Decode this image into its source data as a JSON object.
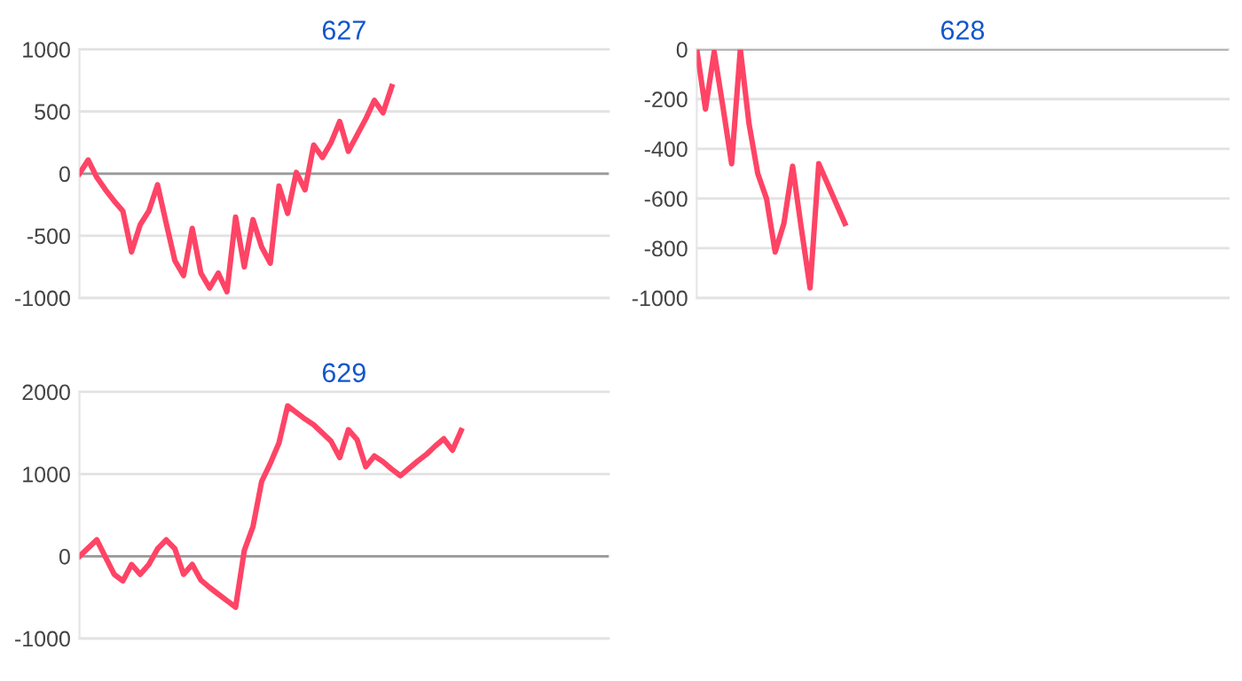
{
  "chart_data": [
    {
      "type": "line",
      "title": "627",
      "tick_labels": "y",
      "grid": "y",
      "categories": [
        null,
        null,
        null,
        null,
        null,
        null,
        null,
        null,
        null,
        null,
        null,
        null,
        null,
        null,
        null,
        null,
        null,
        null,
        null,
        null,
        null,
        null,
        null,
        null,
        null,
        null,
        null,
        null,
        null,
        null,
        null,
        null,
        null,
        null,
        null,
        null,
        null,
        null,
        null,
        null,
        null,
        null,
        null,
        null,
        null,
        null,
        null,
        null,
        null,
        null,
        null,
        null,
        null,
        null,
        null,
        null,
        null,
        null,
        null,
        null,
        null,
        null
      ],
      "series": [
        {
          "color": "#ff4466",
          "values": [
            0,
            110,
            -30,
            -130,
            -220,
            -300,
            -630,
            -410,
            -300,
            -90,
            -400,
            -700,
            -820,
            -440,
            -800,
            -920,
            -800,
            -950,
            -350,
            -750,
            -370,
            -590,
            -720,
            -100,
            -320,
            10,
            -130,
            230,
            130,
            250,
            420,
            180,
            310,
            440,
            590,
            490,
            700,
            null,
            null,
            null,
            null,
            null,
            null,
            null,
            null,
            null,
            null,
            null,
            null,
            null,
            null,
            null,
            null,
            null,
            null,
            null,
            null,
            null,
            null,
            null,
            null,
            null
          ]
        }
      ],
      "ylim": [
        -1000,
        1000
      ],
      "yticks": [
        -1000,
        -500,
        0,
        500,
        1000
      ],
      "ref_lines": [
        {
          "axis": "y",
          "value": 0,
          "color": "#999999"
        }
      ]
    },
    {
      "type": "line",
      "title": "628",
      "tick_labels": "y",
      "grid": "y",
      "categories": [
        null,
        null,
        null,
        null,
        null,
        null,
        null,
        null,
        null,
        null,
        null,
        null,
        null,
        null,
        null,
        null,
        null,
        null,
        null,
        null,
        null,
        null,
        null,
        null,
        null,
        null,
        null,
        null,
        null,
        null,
        null,
        null,
        null,
        null,
        null,
        null,
        null,
        null,
        null,
        null,
        null,
        null,
        null,
        null,
        null,
        null,
        null,
        null,
        null,
        null,
        null,
        null,
        null,
        null,
        null,
        null,
        null,
        null,
        null,
        null,
        null,
        null
      ],
      "series": [
        {
          "color": "#ff4466",
          "values": [
            0,
            -240,
            -10,
            -230,
            -460,
            0,
            -300,
            -500,
            -600,
            -815,
            -700,
            -470,
            -720,
            -960,
            -460,
            -540,
            -620,
            -700,
            null,
            null,
            null,
            null,
            null,
            null,
            null,
            null,
            null,
            null,
            null,
            null,
            null,
            null,
            null,
            null,
            null,
            null,
            null,
            null,
            null,
            null,
            null,
            null,
            null,
            null,
            null,
            null,
            null,
            null,
            null,
            null,
            null,
            null,
            null,
            null,
            null,
            null,
            null,
            null,
            null,
            null,
            null,
            null
          ]
        }
      ],
      "ylim": [
        -1000,
        0
      ],
      "yticks": [
        -1000,
        -800,
        -600,
        -400,
        -200,
        0
      ],
      "ref_lines": [
        {
          "axis": "y",
          "value": 0,
          "color": "#999999"
        }
      ]
    },
    {
      "type": "line",
      "title": "629",
      "tick_labels": "y",
      "grid": "y",
      "categories": [
        null,
        null,
        null,
        null,
        null,
        null,
        null,
        null,
        null,
        null,
        null,
        null,
        null,
        null,
        null,
        null,
        null,
        null,
        null,
        null,
        null,
        null,
        null,
        null,
        null,
        null,
        null,
        null,
        null,
        null,
        null,
        null,
        null,
        null,
        null,
        null,
        null,
        null,
        null,
        null,
        null,
        null,
        null,
        null,
        null,
        null,
        null,
        null,
        null,
        null,
        null,
        null,
        null,
        null,
        null,
        null,
        null,
        null,
        null,
        null,
        null,
        null
      ],
      "series": [
        {
          "color": "#ff4466",
          "values": [
            0,
            100,
            200,
            -10,
            -220,
            -300,
            -100,
            -220,
            -100,
            90,
            200,
            90,
            -220,
            -100,
            -290,
            -380,
            -460,
            -540,
            -620,
            70,
            360,
            910,
            1130,
            1380,
            1830,
            1750,
            1670,
            1600,
            1500,
            1400,
            1200,
            1540,
            1420,
            1090,
            1220,
            1150,
            1060,
            980,
            1070,
            1160,
            1240,
            1340,
            1430,
            1290,
            1530,
            null,
            null,
            null,
            null,
            null,
            null,
            null,
            null,
            null,
            null,
            null,
            null,
            null,
            null,
            null,
            null,
            null
          ]
        }
      ],
      "ylim": [
        -1000,
        2000
      ],
      "yticks": [
        -1000,
        0,
        1000,
        2000
      ],
      "ref_lines": [
        {
          "axis": "y",
          "value": 0,
          "color": "#999999"
        }
      ]
    }
  ]
}
